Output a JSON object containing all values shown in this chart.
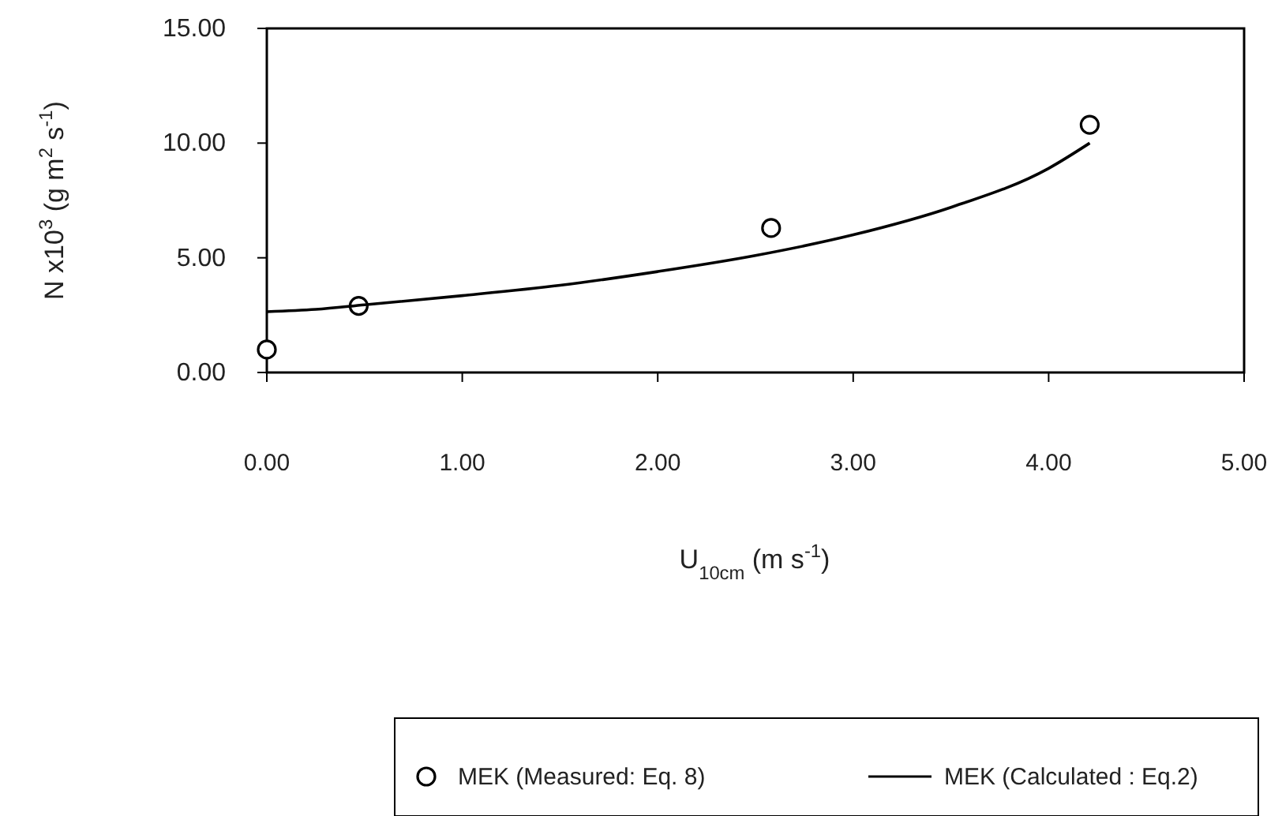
{
  "chart_data": {
    "type": "scatter",
    "xlabel": "U$_{10cm}$ (m s$^{-1}$)",
    "ylabel": "N x10$^{3}$ (g m$^{2}$ s$^{-1}$)",
    "xlim": [
      0,
      5
    ],
    "ylim": [
      0,
      15
    ],
    "xticks": [
      {
        "value": 0,
        "label": "0.00"
      },
      {
        "value": 1,
        "label": "1.00"
      },
      {
        "value": 2,
        "label": "2.00"
      },
      {
        "value": 3,
        "label": "3.00"
      },
      {
        "value": 4,
        "label": "4.00"
      },
      {
        "value": 5,
        "label": "5.00"
      }
    ],
    "yticks": [
      {
        "value": 0,
        "label": "0.00"
      },
      {
        "value": 5,
        "label": "5.00"
      },
      {
        "value": 10,
        "label": "10.00"
      },
      {
        "value": 15,
        "label": "15.00"
      }
    ],
    "grid": false,
    "legend": "bottom",
    "series": [
      {
        "name": "MEK (Measured: Eq. 8)",
        "type": "scatter",
        "marker": "circle",
        "color": "#000000",
        "x": [
          0,
          0.47,
          2.58,
          4.21
        ],
        "values": [
          1.0,
          2.9,
          6.3,
          10.8
        ]
      },
      {
        "name": "MEK (Calculated : Eq.2)",
        "type": "line",
        "marker": "none",
        "color": "#000000",
        "x": [
          0,
          0.25,
          0.5,
          1,
          1.5,
          2,
          2.5,
          3,
          3.5,
          4,
          4.21
        ],
        "values": [
          2.65,
          2.75,
          2.95,
          3.35,
          3.8,
          4.4,
          5.1,
          6.0,
          7.2,
          8.9,
          10.0
        ]
      }
    ]
  }
}
